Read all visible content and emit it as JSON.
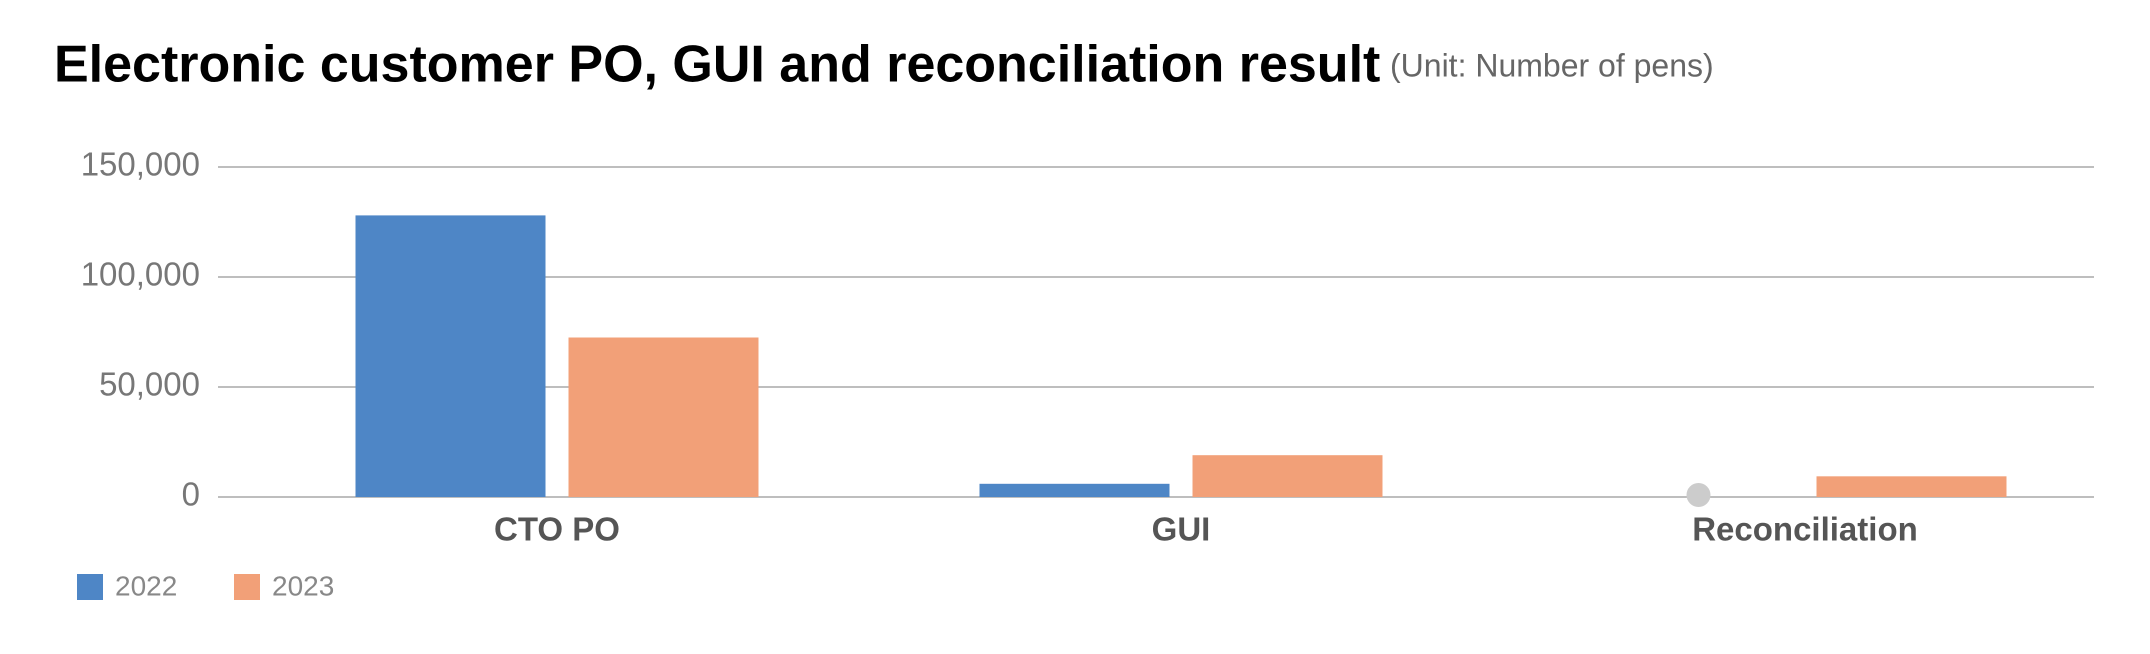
{
  "chart_data": {
    "type": "bar",
    "title": "Electronic customer PO, GUI and reconciliation result",
    "subtitle": "(Unit: Number of pens)",
    "categories": [
      "CTO PO",
      "GUI",
      "Reconciliation"
    ],
    "series": [
      {
        "name": "2022",
        "color": "#4e86c6",
        "values": [
          128000,
          6000,
          0
        ]
      },
      {
        "name": "2023",
        "color": "#f2a078",
        "values": [
          72500,
          19000,
          9400
        ]
      }
    ],
    "ylim": [
      0,
      150000
    ],
    "yticks": [
      0,
      {
        "value": 50000,
        "label": "50,000"
      },
      {
        "value": 100000,
        "label": "100,000"
      },
      {
        "value": 150000,
        "label": "150,000"
      }
    ],
    "grid": true,
    "legend": "bottom-left"
  }
}
